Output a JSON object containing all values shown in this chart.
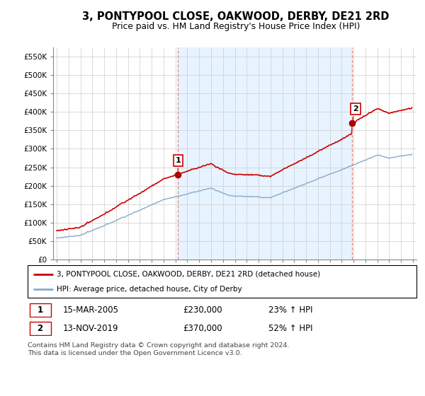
{
  "title": "3, PONTYPOOL CLOSE, OAKWOOD, DERBY, DE21 2RD",
  "subtitle": "Price paid vs. HM Land Registry's House Price Index (HPI)",
  "ylabel_ticks": [
    "£0",
    "£50K",
    "£100K",
    "£150K",
    "£200K",
    "£250K",
    "£300K",
    "£350K",
    "£400K",
    "£450K",
    "£500K",
    "£550K"
  ],
  "ytick_values": [
    0,
    50000,
    100000,
    150000,
    200000,
    250000,
    300000,
    350000,
    400000,
    450000,
    500000,
    550000
  ],
  "ylim": [
    0,
    575000
  ],
  "xlim_start": 1994.7,
  "xlim_end": 2025.3,
  "sale1_year": 2005.21,
  "sale1_price": 230000,
  "sale2_year": 2019.87,
  "sale2_price": 370000,
  "red_line_color": "#cc0000",
  "blue_line_color": "#88aacc",
  "marker_color": "#aa0000",
  "dashed_line_color": "#dd8888",
  "fill_color": "#ddeeff",
  "legend_line1": "3, PONTYPOOL CLOSE, OAKWOOD, DERBY, DE21 2RD (detached house)",
  "legend_line2": "HPI: Average price, detached house, City of Derby",
  "table_row1": [
    "1",
    "15-MAR-2005",
    "£230,000",
    "23% ↑ HPI"
  ],
  "table_row2": [
    "2",
    "13-NOV-2019",
    "£370,000",
    "52% ↑ HPI"
  ],
  "footnote": "Contains HM Land Registry data © Crown copyright and database right 2024.\nThis data is licensed under the Open Government Licence v3.0.",
  "background_color": "#ffffff",
  "grid_color": "#cccccc"
}
